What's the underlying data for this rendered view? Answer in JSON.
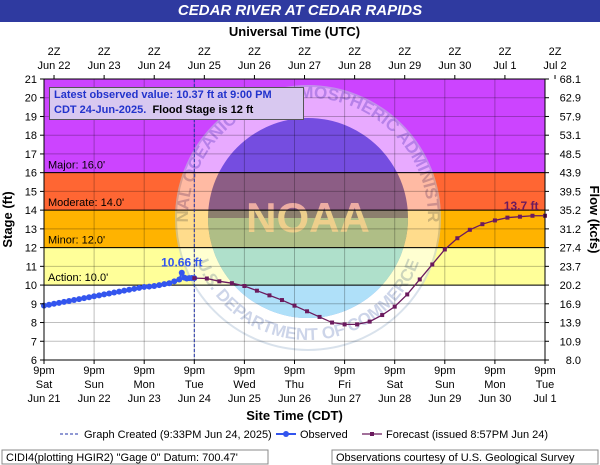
{
  "title": "CEDAR RIVER AT CEDAR RAPIDS",
  "chart_data": {
    "type": "line",
    "title": "CEDAR RIVER AT CEDAR RAPIDS",
    "top_axis_label": "Universal Time (UTC)",
    "top_ticks": [
      "2Z|Jun 22",
      "2Z|Jun 23",
      "2Z|Jun 24",
      "2Z|Jun 25",
      "2Z|Jun 26",
      "2Z|Jun 27",
      "2Z|Jun 28",
      "2Z|Jun 29",
      "2Z|Jun 30",
      "2Z|Jul 1",
      "2Z|Jul 2"
    ],
    "xlabel": "Site Time (CDT)",
    "x_ticks": [
      "9pm|Sat|Jun 21",
      "9pm|Sun|Jun 22",
      "9pm|Mon|Jun 23",
      "9pm|Tue|Jun 24",
      "9pm|Wed|Jun 25",
      "9pm|Thu|Jun 26",
      "9pm|Fri|Jun 27",
      "9pm|Sat|Jun 28",
      "9pm|Sun|Jun 29",
      "9pm|Mon|Jun 30",
      "9pm|Tue|Jul 1"
    ],
    "xlim_days": [
      0,
      10
    ],
    "ylabel": "Stage (ft)",
    "y_ticks": [
      6,
      7,
      8,
      9,
      10,
      11,
      12,
      13,
      14,
      15,
      16,
      17,
      18,
      19,
      20,
      21
    ],
    "ylim": [
      6,
      21
    ],
    "y2label": "Flow (kcfs)",
    "y2_ticks": [
      "8.0",
      "10.9",
      "13.9",
      "16.9",
      "20.2",
      "23.7",
      "27.4",
      "31.2",
      "35.2",
      "39.5",
      "43.9",
      "48.5",
      "53.1",
      "57.9",
      "62.9",
      "68.1"
    ],
    "flood_categories": [
      {
        "label": "Action: 10.0'",
        "from": 10,
        "to": 12,
        "color": "#ffff99"
      },
      {
        "label": "Minor: 12.0'",
        "from": 12,
        "to": 14,
        "color": "#ffb300"
      },
      {
        "label": "Moderate: 14.0'",
        "from": 14,
        "to": 16,
        "color": "#ff6633"
      },
      {
        "label": "Major: 16.0'",
        "from": 16,
        "to": 21,
        "color": "#cc44ff"
      }
    ],
    "series": [
      {
        "name": "Observed",
        "color": "#3355ee",
        "x": [
          0,
          0.1,
          0.2,
          0.3,
          0.4,
          0.5,
          0.6,
          0.7,
          0.8,
          0.9,
          1.0,
          1.1,
          1.2,
          1.3,
          1.4,
          1.5,
          1.6,
          1.7,
          1.8,
          1.9,
          2.0,
          2.1,
          2.2,
          2.3,
          2.4,
          2.5,
          2.6,
          2.7,
          2.75,
          2.8,
          2.85,
          2.9,
          2.95,
          3.0
        ],
        "values": [
          8.9,
          8.95,
          9.0,
          9.05,
          9.1,
          9.15,
          9.2,
          9.25,
          9.3,
          9.35,
          9.4,
          9.45,
          9.5,
          9.55,
          9.6,
          9.65,
          9.7,
          9.75,
          9.8,
          9.85,
          9.9,
          9.92,
          9.95,
          10.0,
          10.05,
          10.1,
          10.2,
          10.3,
          10.66,
          10.4,
          10.35,
          10.37,
          10.38,
          10.37
        ]
      },
      {
        "name": "Forecast (issued 8:57PM Jun 24)",
        "color": "#6b1a5e",
        "x": [
          3.0,
          3.25,
          3.5,
          3.75,
          4.0,
          4.25,
          4.5,
          4.75,
          5.0,
          5.25,
          5.5,
          5.75,
          6.0,
          6.25,
          6.5,
          6.75,
          7.0,
          7.25,
          7.5,
          7.75,
          8.0,
          8.25,
          8.5,
          8.75,
          9.0,
          9.25,
          9.5,
          9.75,
          10.0
        ],
        "values": [
          10.37,
          10.35,
          10.2,
          10.1,
          9.95,
          9.7,
          9.45,
          9.2,
          8.9,
          8.6,
          8.3,
          8.0,
          7.9,
          7.9,
          8.05,
          8.4,
          8.85,
          9.5,
          10.3,
          11.1,
          11.9,
          12.5,
          12.95,
          13.25,
          13.45,
          13.6,
          13.65,
          13.7,
          13.7
        ]
      }
    ],
    "annotations": {
      "observed_peak_label": "10.66 ft",
      "forecast_peak_label": "13.7 ft",
      "info_line1": "Latest observed value: 10.37 ft at 9:00 PM",
      "info_line2": "CDT 24-Jun-2025.",
      "info_line2b": "Flood Stage is 12 ft"
    }
  },
  "legend": {
    "created": "Graph Created (9:33PM Jun 24, 2025)",
    "observed": "Observed",
    "forecast": "Forecast (issued 8:57PM Jun 24)"
  },
  "footer": {
    "left": "CIDI4(plotting HGIR2) \"Gage 0\" Datum: 700.47'",
    "right": "Observations courtesy of U.S. Geological Survey"
  },
  "watermark": {
    "top_text": "NATIONAL OCEANIC AND ATMOSPHERIC ADMINISTRATION",
    "bottom_text": "U.S. DEPARTMENT OF COMMERCE",
    "center_text": "NOAA"
  }
}
